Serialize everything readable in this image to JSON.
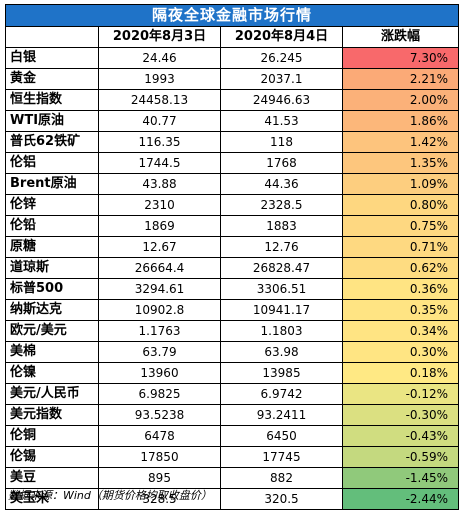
{
  "title": "隔夜全球金融市场行情",
  "headers": [
    "",
    "2020年8月3日",
    "2020年8月4日",
    "涨跌幅"
  ],
  "rows": [
    {
      "name": "白银",
      "d1": "24.46",
      "d2": "26.245",
      "chg": "7.30%",
      "color": "#f8696b"
    },
    {
      "name": "黄金",
      "d1": "1993",
      "d2": "2037.1",
      "chg": "2.21%",
      "color": "#fbaa77"
    },
    {
      "name": "恒生指数",
      "d1": "24458.13",
      "d2": "24946.63",
      "chg": "2.00%",
      "color": "#fbb179"
    },
    {
      "name": "WTI原油",
      "d1": "40.77",
      "d2": "41.53",
      "chg": "1.86%",
      "color": "#fcb77a"
    },
    {
      "name": "普氏62铁矿",
      "d1": "116.35",
      "d2": "118",
      "chg": "1.42%",
      "color": "#fdc47d"
    },
    {
      "name": "伦铝",
      "d1": "1744.5",
      "d2": "1768",
      "chg": "1.35%",
      "color": "#fdc67d"
    },
    {
      "name": "Brent原油",
      "d1": "43.88",
      "d2": "44.36",
      "chg": "1.09%",
      "color": "#fdce7f"
    },
    {
      "name": "伦锌",
      "d1": "2310",
      "d2": "2328.5",
      "chg": "0.80%",
      "color": "#fed780"
    },
    {
      "name": "伦铅",
      "d1": "1869",
      "d2": "1883",
      "chg": "0.75%",
      "color": "#fed881"
    },
    {
      "name": "原糖",
      "d1": "12.67",
      "d2": "12.76",
      "chg": "0.71%",
      "color": "#fed981"
    },
    {
      "name": "道琼斯",
      "d1": "26664.4",
      "d2": "26828.47",
      "chg": "0.62%",
      "color": "#fedc81"
    },
    {
      "name": "标普500",
      "d1": "3294.61",
      "d2": "3306.51",
      "chg": "0.36%",
      "color": "#ffe483"
    },
    {
      "name": "纳斯达克",
      "d1": "10902.8",
      "d2": "10941.17",
      "chg": "0.35%",
      "color": "#ffe483"
    },
    {
      "name": "欧元/美元",
      "d1": "1.1763",
      "d2": "1.1803",
      "chg": "0.34%",
      "color": "#ffe483"
    },
    {
      "name": "美棉",
      "d1": "63.79",
      "d2": "63.98",
      "chg": "0.30%",
      "color": "#ffe583"
    },
    {
      "name": "伦镍",
      "d1": "13960",
      "d2": "13985",
      "chg": "0.18%",
      "color": "#ffe984"
    },
    {
      "name": "美元/人民币",
      "d1": "6.9825",
      "d2": "6.9742",
      "chg": "-0.12%",
      "color": "#eae583"
    },
    {
      "name": "美元指数",
      "d1": "93.5238",
      "d2": "93.2411",
      "chg": "-0.30%",
      "color": "#dbe081"
    },
    {
      "name": "伦铜",
      "d1": "6478",
      "d2": "6450",
      "chg": "-0.43%",
      "color": "#d0dd80"
    },
    {
      "name": "伦锡",
      "d1": "17850",
      "d2": "17745",
      "chg": "-0.59%",
      "color": "#c4d97f"
    },
    {
      "name": "美豆",
      "d1": "895",
      "d2": "882",
      "chg": "-1.45%",
      "color": "#90c97b"
    },
    {
      "name": "美玉米",
      "d1": "328.5",
      "d2": "320.5",
      "chg": "-2.44%",
      "color": "#63be7b"
    }
  ],
  "footnote": "数据来源：Wind（期货价格均取收盘价）"
}
